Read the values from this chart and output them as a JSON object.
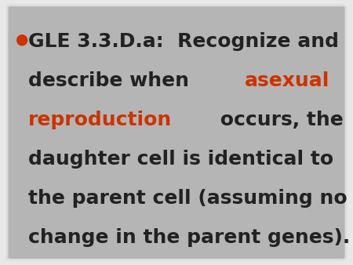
{
  "background_color": "#e8e8e8",
  "slide_bg_color": "#b5b5b5",
  "border_color": "#dddddd",
  "bullet_color": "#cc3300",
  "text_color": "#222222",
  "highlight_color": "#cc3300",
  "line1_normal": "GLE 3.3.D.a:  Recognize and",
  "line2_normal": "describe when ",
  "line2_highlight": "asexual",
  "line3_highlight": "reproduction",
  "line3_normal": " occurs, the",
  "line4_normal": "daughter cell is identical to",
  "line5_normal": "the parent cell (assuming no",
  "line6_normal": "change in the parent genes).",
  "font_family": "DejaVu Sans",
  "font_size": 18,
  "figwidth": 4.5,
  "figheight": 3.38,
  "dpi": 100
}
